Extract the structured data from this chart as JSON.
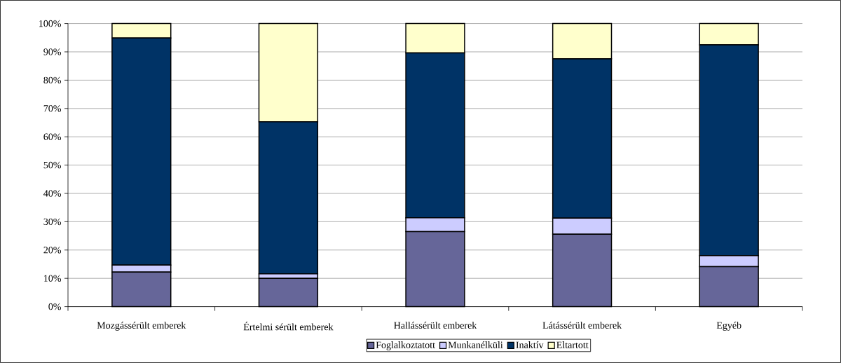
{
  "chart_data": {
    "type": "bar",
    "stacked": true,
    "categories": [
      "Mozgássérült emberek",
      "Értelmi sérült emberek",
      "Hallássérült emberek",
      "Látássérült emberek",
      "Egyéb"
    ],
    "series": [
      {
        "name": "Foglalkoztatott",
        "color": "#666699",
        "values": [
          12.2,
          10.0,
          26.5,
          25.6,
          14.1
        ]
      },
      {
        "name": "Munkanélküli",
        "color": "#ccccff",
        "values": [
          2.5,
          1.6,
          4.9,
          5.7,
          3.9
        ]
      },
      {
        "name": "Inaktív",
        "color": "#003366",
        "values": [
          80.2,
          53.7,
          58.2,
          56.2,
          74.5
        ]
      },
      {
        "name": "Eltartott",
        "color": "#ffffcc",
        "values": [
          5.1,
          34.7,
          10.4,
          12.5,
          7.5
        ]
      }
    ],
    "ylim": [
      0,
      100
    ],
    "yticks": [
      {
        "value": 0,
        "label": "0%"
      },
      {
        "value": 10,
        "label": "10%"
      },
      {
        "value": 20,
        "label": "20%"
      },
      {
        "value": 30,
        "label": "30%"
      },
      {
        "value": 40,
        "label": "40%"
      },
      {
        "value": 50,
        "label": "50%"
      },
      {
        "value": 60,
        "label": "60%"
      },
      {
        "value": 70,
        "label": "70%"
      },
      {
        "value": 80,
        "label": "80%"
      },
      {
        "value": 90,
        "label": "90%"
      },
      {
        "value": 100,
        "label": "100%"
      }
    ],
    "grid": "y",
    "legend": "bottom"
  }
}
